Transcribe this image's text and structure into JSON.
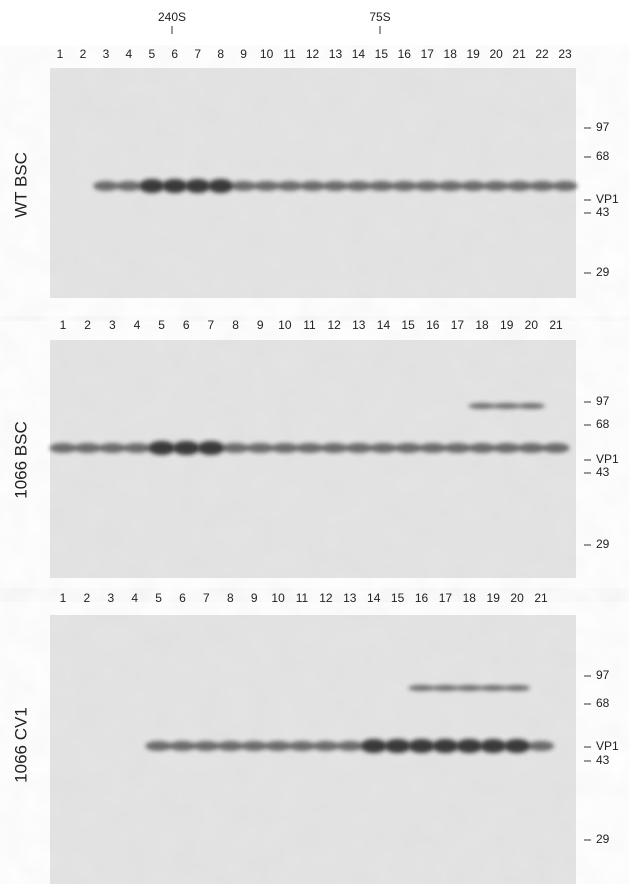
{
  "sedimentation_markers": [
    "240S",
    "75S"
  ],
  "panels": [
    {
      "label": "WT BSC",
      "lanes": [
        "1",
        "2",
        "3",
        "4",
        "5",
        "6",
        "7",
        "8",
        "9",
        "10",
        "11",
        "12",
        "13",
        "14",
        "15",
        "16",
        "17",
        "18",
        "19",
        "20",
        "21",
        "22",
        "23"
      ],
      "markers": [
        "97",
        "68",
        "VP1",
        "43",
        "29"
      ]
    },
    {
      "label": "1066 BSC",
      "lanes": [
        "1",
        "2",
        "3",
        "4",
        "5",
        "6",
        "7",
        "8",
        "9",
        "10",
        "11",
        "12",
        "13",
        "14",
        "15",
        "16",
        "17",
        "18",
        "19",
        "20",
        "21"
      ],
      "markers": [
        "97",
        "68",
        "VP1",
        "43",
        "29"
      ]
    },
    {
      "label": "1066 CV1",
      "lanes": [
        "1",
        "2",
        "3",
        "4",
        "5",
        "6",
        "7",
        "8",
        "9",
        "10",
        "11",
        "12",
        "13",
        "14",
        "15",
        "16",
        "17",
        "18",
        "19",
        "20",
        "21"
      ],
      "markers": [
        "97",
        "68",
        "VP1",
        "43",
        "29"
      ]
    }
  ]
}
